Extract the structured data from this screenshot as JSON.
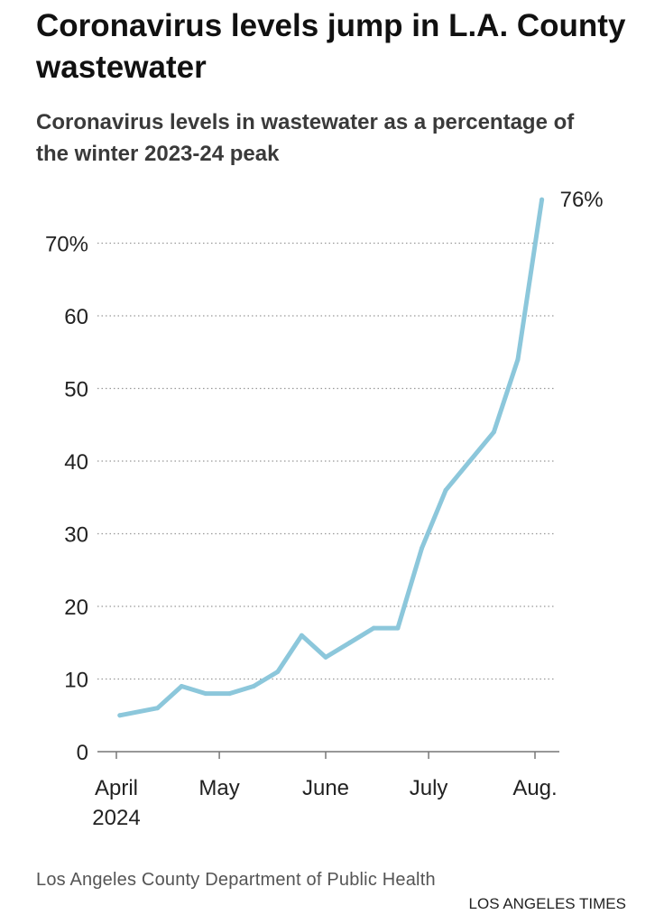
{
  "title": "Coronavirus levels jump in L.A. County wastewater",
  "subtitle": "Coronavirus levels in wastewater as a percentage of the winter 2023-24 peak",
  "source": "Los Angeles County Department of Public Health",
  "credit": "LOS ANGELES TIMES",
  "colors": {
    "line": "#8cc7db",
    "grid": "#999999",
    "axis": "#777777",
    "text": "#111111"
  },
  "chart_data": {
    "type": "line",
    "title": "Coronavirus levels jump in L.A. County wastewater",
    "subtitle": "Coronavirus levels in wastewater as a percentage of the winter 2023-24 peak",
    "xlabel": "",
    "ylabel": "",
    "ylim": [
      0,
      76
    ],
    "grid": true,
    "x_ticks": [
      {
        "date": "2024-04-01",
        "label": "April",
        "sublabel": "2024"
      },
      {
        "date": "2024-05-01",
        "label": "May"
      },
      {
        "date": "2024-06-01",
        "label": "June"
      },
      {
        "date": "2024-07-01",
        "label": "July"
      },
      {
        "date": "2024-08-01",
        "label": "Aug."
      }
    ],
    "y_ticks": [
      {
        "value": 0,
        "label": "0"
      },
      {
        "value": 10,
        "label": "10"
      },
      {
        "value": 20,
        "label": "20"
      },
      {
        "value": 30,
        "label": "30"
      },
      {
        "value": 40,
        "label": "40"
      },
      {
        "value": 50,
        "label": "50"
      },
      {
        "value": 60,
        "label": "60"
      },
      {
        "value": 70,
        "label": "70%"
      }
    ],
    "series": [
      {
        "points": [
          {
            "x": "2024-04-02",
            "y": 5
          },
          {
            "x": "2024-04-13",
            "y": 6
          },
          {
            "x": "2024-04-20",
            "y": 9
          },
          {
            "x": "2024-04-27",
            "y": 8
          },
          {
            "x": "2024-05-04",
            "y": 8
          },
          {
            "x": "2024-05-11",
            "y": 9
          },
          {
            "x": "2024-05-18",
            "y": 11
          },
          {
            "x": "2024-05-25",
            "y": 16
          },
          {
            "x": "2024-06-01",
            "y": 13
          },
          {
            "x": "2024-06-08",
            "y": 15
          },
          {
            "x": "2024-06-15",
            "y": 17
          },
          {
            "x": "2024-06-22",
            "y": 17
          },
          {
            "x": "2024-06-29",
            "y": 28
          },
          {
            "x": "2024-07-06",
            "y": 36
          },
          {
            "x": "2024-07-13",
            "y": 40
          },
          {
            "x": "2024-07-20",
            "y": 44
          },
          {
            "x": "2024-07-27",
            "y": 54
          },
          {
            "x": "2024-08-03",
            "y": 76
          }
        ]
      }
    ],
    "annotations": [
      {
        "x": "2024-08-03",
        "y": 76,
        "text": "76%"
      }
    ]
  }
}
